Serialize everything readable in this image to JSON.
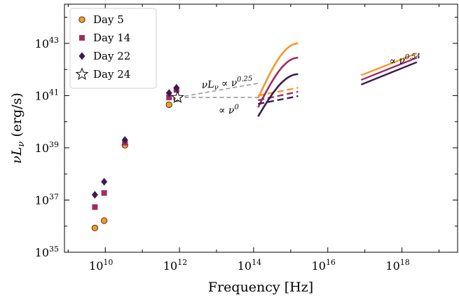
{
  "chart_data": {
    "type": "scatter",
    "title": "",
    "xlabel": "Frequency [Hz]",
    "ylabel": "νLν (erg/s)",
    "x_scale": "log",
    "y_scale": "log",
    "xlim_log10": [
      8.9,
      19.5
    ],
    "ylim_log10": [
      35,
      44.5
    ],
    "x_tick_labels": [
      {
        "log": 10,
        "base": "10",
        "exp": "10"
      },
      {
        "log": 12,
        "base": "10",
        "exp": "12"
      },
      {
        "log": 14,
        "base": "10",
        "exp": "14"
      },
      {
        "log": 16,
        "base": "10",
        "exp": "16"
      },
      {
        "log": 18,
        "base": "10",
        "exp": "18"
      }
    ],
    "y_tick_labels": [
      {
        "log": 35,
        "base": "10",
        "exp": "35"
      },
      {
        "log": 37,
        "base": "10",
        "exp": "37"
      },
      {
        "log": 39,
        "base": "10",
        "exp": "39"
      },
      {
        "log": 41,
        "base": "10",
        "exp": "41"
      },
      {
        "log": 43,
        "base": "10",
        "exp": "43"
      }
    ],
    "grid": false,
    "legend_position": "top-left",
    "series": [
      {
        "name": "Day 5",
        "marker": "circle",
        "color": "#f29a2a",
        "points_log10": [
          [
            9.72,
            35.93
          ],
          [
            9.97,
            36.21
          ],
          [
            10.53,
            39.1
          ],
          [
            11.72,
            40.65
          ],
          [
            11.92,
            40.88
          ]
        ],
        "optical_log10": {
          "x": [
            14.12,
            15.2
          ],
          "y": [
            40.9,
            43.0
          ]
        },
        "optical_flat_log10": {
          "x": [
            14.12,
            15.2
          ],
          "y": [
            41.0,
            41.3
          ]
        },
        "xray_log10": {
          "x": [
            16.9,
            18.4
          ],
          "y": [
            41.78,
            42.62
          ]
        }
      },
      {
        "name": "Day 14",
        "marker": "square",
        "color": "#a12b5e",
        "points_log10": [
          [
            9.72,
            36.73
          ],
          [
            9.97,
            37.27
          ],
          [
            10.53,
            39.2
          ],
          [
            11.72,
            40.93
          ],
          [
            11.92,
            41.22
          ]
        ],
        "optical_log10": {
          "x": [
            14.12,
            15.2
          ],
          "y": [
            40.55,
            42.45
          ]
        },
        "optical_flat_log10": {
          "x": [
            14.12,
            15.2
          ],
          "y": [
            40.82,
            41.15
          ]
        },
        "xray_log10": {
          "x": [
            16.9,
            18.4
          ],
          "y": [
            41.6,
            42.45
          ]
        }
      },
      {
        "name": "Day 22",
        "marker": "diamond",
        "color": "#3a1c52",
        "points_log10": [
          [
            9.72,
            37.2
          ],
          [
            9.97,
            37.7
          ],
          [
            10.53,
            39.3
          ],
          [
            11.72,
            41.1
          ],
          [
            11.92,
            41.3
          ]
        ],
        "optical_log10": {
          "x": [
            14.12,
            15.2
          ],
          "y": [
            40.2,
            41.82
          ]
        },
        "optical_flat_log10": {
          "x": [
            14.12,
            15.2
          ],
          "y": [
            40.68,
            40.98
          ]
        },
        "xray_log10": {
          "x": [
            16.9,
            18.4
          ],
          "y": [
            41.42,
            42.28
          ]
        }
      },
      {
        "name": "Day 24",
        "marker": "star",
        "color": "#ffffff",
        "points_log10": [
          [
            11.95,
            40.93
          ]
        ]
      }
    ],
    "extrapolations": [
      {
        "label": "νLν ∝ ν^0.25",
        "slope": 0.25,
        "from_log10": [
          11.95,
          40.93
        ],
        "to_x_log10": 14.12
      },
      {
        "label": "∝ ν^0",
        "slope": 0,
        "from_log10": [
          11.95,
          40.93
        ],
        "to_x_log10": 14.12
      }
    ],
    "annotations": [
      {
        "text": "νLν ∝ ν^0.25",
        "parts": [
          "νL",
          "ν",
          " ∝ ν",
          "0.25"
        ]
      },
      {
        "text": "∝ ν^0",
        "parts": [
          "∝ ν",
          "0"
        ]
      },
      {
        "text": "∝ ν^0.54",
        "parts": [
          "∝ ν",
          "0.54"
        ]
      }
    ]
  }
}
